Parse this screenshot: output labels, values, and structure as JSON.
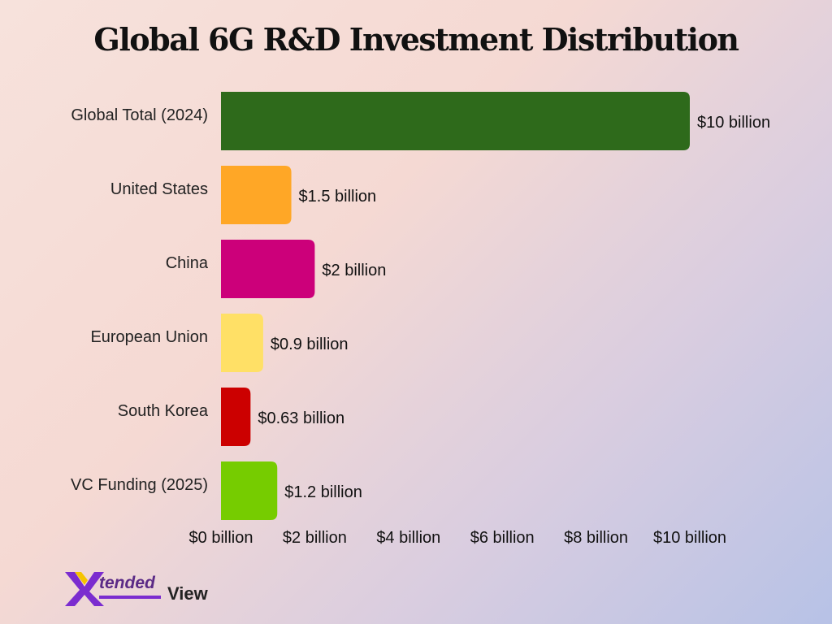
{
  "chart_data": {
    "type": "bar",
    "orientation": "horizontal",
    "title": "Global 6G R&D Investment Distribution",
    "categories": [
      "Global Total (2024)",
      "United States",
      "China",
      "European Union",
      "South Korea",
      "VC Funding (2025)"
    ],
    "values": [
      10,
      1.5,
      2,
      0.9,
      0.63,
      1.2
    ],
    "value_labels": [
      "$10 billion",
      "$1.5 billion",
      "$2 billion",
      "$0.9 billion",
      "$0.63 billion",
      "$1.2 billion"
    ],
    "colors": [
      "#2e6a1b",
      "#ffa726",
      "#cc007a",
      "#ffe066",
      "#cc0000",
      "#76cc00"
    ],
    "xlim": [
      0,
      10
    ],
    "xticks": [
      0,
      2,
      4,
      6,
      8,
      10
    ],
    "xtick_labels": [
      "$0 billion",
      "$2 billion",
      "$4 billion",
      "$6 billion",
      "$8 billion",
      "$10 billion"
    ],
    "grid": false,
    "legend": "none"
  },
  "logo": {
    "part1": "tended",
    "part2": "View",
    "colors": [
      "#7b2ccf",
      "#f5c400"
    ]
  }
}
